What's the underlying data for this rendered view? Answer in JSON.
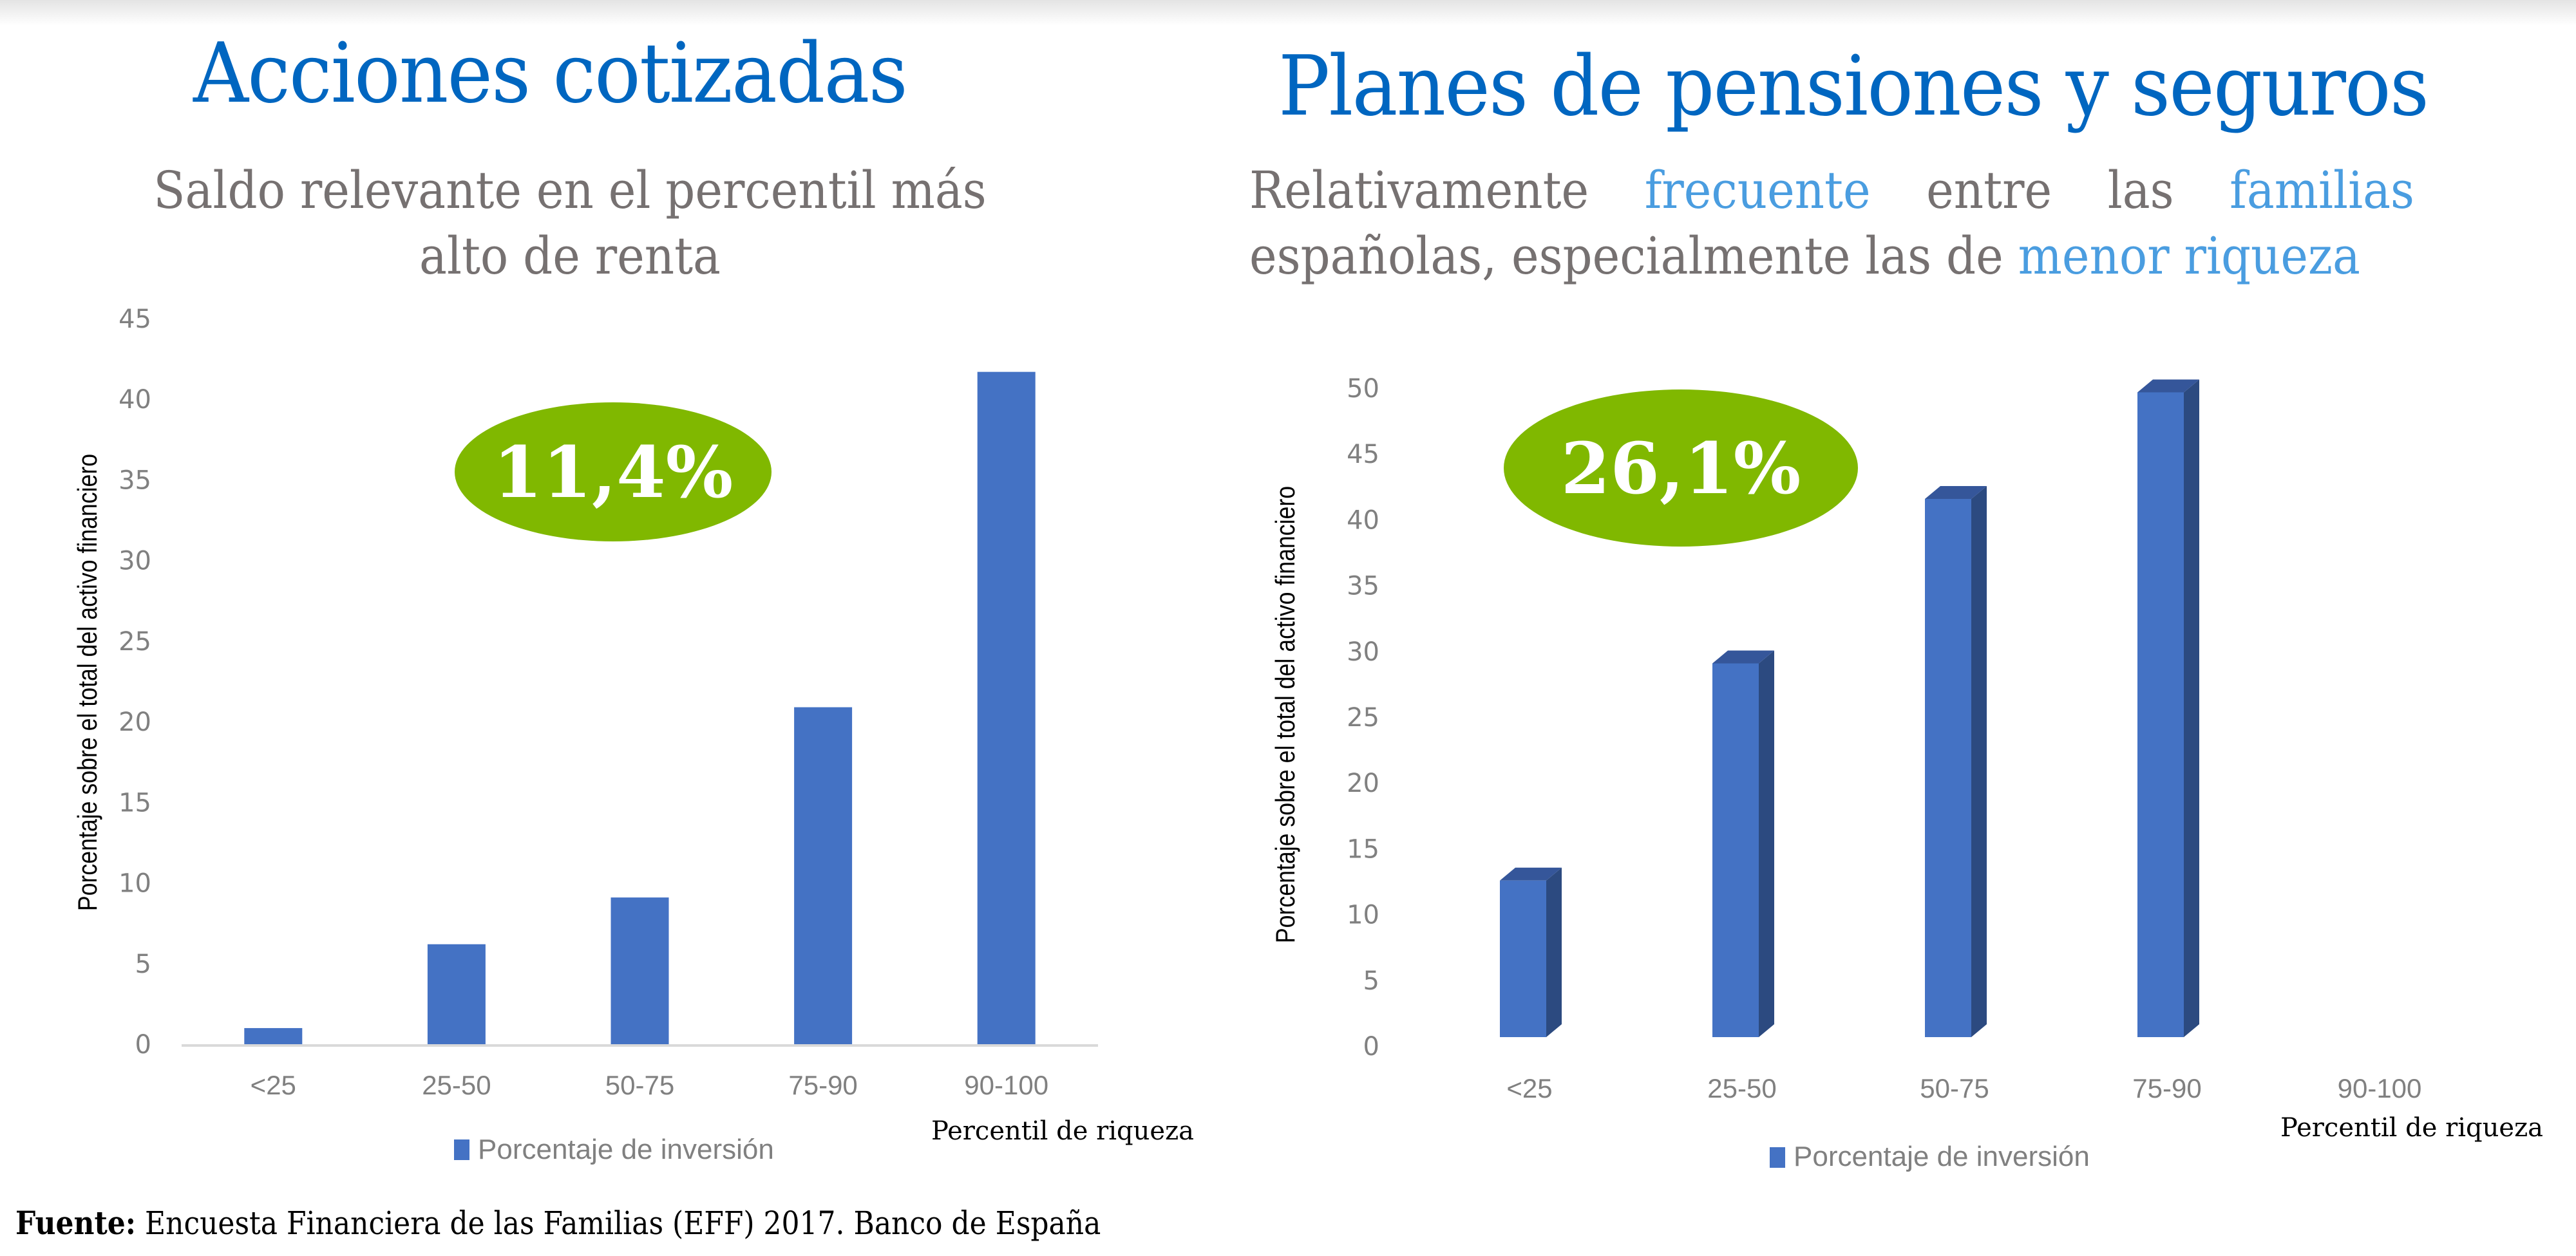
{
  "colors": {
    "title": "#0066c0",
    "subtitle": "#767171",
    "highlight": "#4a9de0",
    "bar": "#4472c4",
    "bar_side": "#2c4a80",
    "bar_top": "#35569a",
    "badge": "#80b800",
    "tick": "#808080",
    "axis": "#d9d9d9"
  },
  "left": {
    "title": "Acciones cotizadas",
    "subtitle": "Saldo relevante en el percentil más alto de renta",
    "badge": "11,4%"
  },
  "right": {
    "title": "Planes de pensiones y seguros",
    "subtitle_parts": [
      {
        "text": "Relativamente ",
        "highlight": false
      },
      {
        "text": "frecuente",
        "highlight": true
      },
      {
        "text": " entre las ",
        "highlight": false
      },
      {
        "text": "familias",
        "highlight": true
      },
      {
        "text": " españolas, especialmente las de ",
        "highlight": false
      },
      {
        "text": "menor riqueza",
        "highlight": true
      }
    ],
    "subtitle_line1": [
      "Relativamente",
      "frecuente",
      "entre",
      "las",
      "familias"
    ],
    "subtitle_line2_plain": "españolas, especialmente las de ",
    "subtitle_line2_hl": "menor riqueza",
    "badge": "26,1%"
  },
  "source": {
    "label": "Fuente:",
    "text": " Encuesta Financiera de las Familias (EFF) 2017. Banco de España"
  },
  "chart_data": [
    {
      "type": "bar",
      "title": "Acciones cotizadas",
      "subtitle": "Saldo relevante en el percentil más alto de renta",
      "categories": [
        "<25",
        "25-50",
        "50-75",
        "75-90",
        "90-100"
      ],
      "series": [
        {
          "name": "Porcentaje de inversión",
          "values": [
            1.0,
            6.2,
            9.1,
            20.9,
            41.7
          ]
        }
      ],
      "xlabel": "Percentil de riqueza",
      "ylabel": "Porcentaje sobre el total del activo financiero",
      "ylim": [
        0,
        45
      ],
      "yticks": [
        0,
        5,
        10,
        15,
        20,
        25,
        30,
        35,
        40,
        45
      ],
      "grid": false,
      "legend": "bottom",
      "annotation": "11,4%",
      "style": "2d"
    },
    {
      "type": "bar",
      "title": "Planes de pensiones y seguros",
      "subtitle": "Relativamente frecuente entre las familias españolas, especialmente las de menor riqueza",
      "categories": [
        "<25",
        "25-50",
        "50-75",
        "75-90",
        "90-100"
      ],
      "series": [
        {
          "name": "Porcentaje de inversión",
          "values": [
            11.9,
            28.4,
            40.9,
            49.0,
            null
          ]
        }
      ],
      "xlabel": "Percentil de riqueza",
      "ylabel": "Porcentaje sobre el total del activo financiero",
      "ylim": [
        0,
        50
      ],
      "yticks": [
        0,
        5,
        10,
        15,
        20,
        25,
        30,
        35,
        40,
        45,
        50
      ],
      "grid": false,
      "legend": "bottom",
      "annotation": "26,1%",
      "style": "3d"
    }
  ]
}
